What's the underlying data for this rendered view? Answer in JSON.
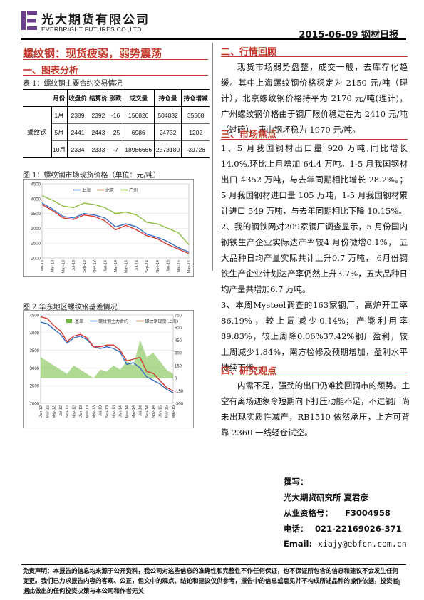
{
  "header": {
    "company_cn": "光大期货有限公司",
    "company_en": "EVERBRIGHT FUTURES CO.,LTD.",
    "date_title": "2015-06-09 钢材日报"
  },
  "main_title": "螺纹钢：现货疲弱，弱势震荡",
  "left": {
    "section1": "一、图表分析",
    "table_caption": "表 1：螺纹钢主要合约交易情况",
    "table": {
      "headers": [
        "月份",
        "收盘价",
        "结算价",
        "涨跌",
        "成交量",
        "持仓量",
        "持仓增减"
      ],
      "product": "螺纹钢",
      "rows": [
        [
          "1月",
          "2389",
          "2392",
          "-16",
          "156826",
          "504832",
          "35568"
        ],
        [
          "5月",
          "2441",
          "2443",
          "-25",
          "6986",
          "24732",
          "1202"
        ],
        [
          "10月",
          "2334",
          "2333",
          "-7",
          "18986666",
          "2373180",
          "-39726"
        ]
      ]
    },
    "fig1_caption": "图 1：螺纹钢市场现货价格（单位：元/吨）",
    "fig2_caption": "图 2  华东地区螺纹钢基差情况"
  },
  "chart_data": [
    {
      "type": "line",
      "title": "",
      "x": [
        "Jan-13",
        "Mar-13",
        "May-13",
        "Jul-13",
        "Sep-13",
        "Nov-13",
        "Jan-14",
        "Mar-14",
        "May-14",
        "Jul-14",
        "Sep-14",
        "Nov-14",
        "Jan-15",
        "Mar-15",
        "May-15"
      ],
      "ylim": [
        2000,
        4500
      ],
      "yticks": [
        2000,
        2500,
        3000,
        3500,
        4000,
        4500
      ],
      "series": [
        {
          "name": "上海",
          "color": "#3b6fc4",
          "values": [
            3850,
            3650,
            3400,
            3350,
            3500,
            3450,
            3350,
            3050,
            3150,
            3050,
            2800,
            2700,
            2550,
            2350,
            2200
          ]
        },
        {
          "name": "北京",
          "color": "#d43a2f",
          "values": [
            3800,
            3600,
            3350,
            3300,
            3450,
            3400,
            3250,
            2950,
            3100,
            2950,
            2750,
            2650,
            2450,
            2300,
            2150
          ]
        },
        {
          "name": "广州",
          "color": "#8cbf3f",
          "values": [
            4100,
            3950,
            3750,
            3700,
            3850,
            3800,
            3700,
            3500,
            3550,
            3450,
            3200,
            3150,
            3000,
            2850,
            2450
          ]
        }
      ]
    },
    {
      "type": "line",
      "title": "",
      "x": [
        "Jan-12",
        "Mar-12",
        "May-12",
        "Jul-12",
        "Sep-12",
        "Nov-12",
        "Jan-13",
        "Mar-13",
        "May-13",
        "Jul-13",
        "Sep-13",
        "Nov-13",
        "Jan-14",
        "Mar-14",
        "May-14",
        "Jul-14",
        "Sep-14",
        "Nov-14",
        "Jan-15",
        "Mar-15",
        "May-15"
      ],
      "ylim": [
        2000,
        4500
      ],
      "yticks": [
        2000,
        2500,
        3000,
        3500,
        4000,
        4500
      ],
      "y2lim": [
        -300,
        750
      ],
      "y2ticks": [
        -300,
        -150,
        0,
        150,
        300,
        450,
        600,
        750
      ],
      "series": [
        {
          "name": "基差",
          "axis": "right",
          "color": "#6fb93a",
          "type": "area",
          "values": [
            250,
            200,
            150,
            100,
            50,
            150,
            100,
            50,
            0,
            100,
            80,
            150,
            100,
            200,
            150,
            450,
            250,
            300,
            200,
            100,
            50
          ]
        },
        {
          "name": "螺纹钢主力合约",
          "axis": "left",
          "color": "#3b6fc4",
          "values": [
            4300,
            4250,
            4100,
            3950,
            3700,
            3850,
            3900,
            3800,
            3600,
            3550,
            3600,
            3550,
            3450,
            3100,
            3150,
            3000,
            2750,
            2650,
            2550,
            2400,
            2300
          ]
        },
        {
          "name": "螺纹钢现货(上海)",
          "axis": "left",
          "color": "#d43a2f",
          "values": [
            4450,
            4400,
            4200,
            4050,
            3750,
            3900,
            3950,
            3850,
            3600,
            3600,
            3650,
            3650,
            3500,
            3200,
            3250,
            3300,
            2900,
            2850,
            2650,
            2450,
            2350
          ]
        }
      ]
    }
  ],
  "right": {
    "section2": "二、行情回顾",
    "review": "现货市场弱势盘整，成交一般，去库存化趋缓。其中上海螺纹钢价格稳定为 2150 元/吨（理计），北京螺纹钢价格持平为 2170 元/吨(理计)，广州螺纹钢价格由于钢厂限价稳定在为 2410 元/吨（过磅），唐山钢坯稳为 1970 元/吨。",
    "section3": "三、市场焦点",
    "focus1": "1、5 月我国钢材出口量 920 万吨,同比增长 14.0%,环比上月增加 64.4 万吨。1-5 月我国钢材出口 4352 万吨，与去年同期相比增长 28.2%。；  5 月我国钢材进口量 105 万吨，1-5 月我国钢材累计进口 549 万吨，与去年同期相比下降 10.15%。",
    "focus2": "2、我的钢铁网对209家钢厂调查显示，5 月份国内钢铁生产企业实际达产率较4 月份微增0.1%，  五大品种日均产量实际共计上升0.7  万吨，  6月份钢铁生产企业计划达产率仍然上升3.7%，五大品种日均产量共增加6.7  万吨。",
    "focus3": "3、本周Mysteel调查的163家钢厂，高炉开工率86.19%，较上周减少0.14%；产能利用率89.83%，较上周降0.06%37.42%钢厂盈利，较上周减少1.84%，南方检修及预期增加，盈利水平持续下滑。",
    "section4": "四、研究观点",
    "view": "内需不足，强劲的出口仍难挽回钢市的颓势。主空有离场迹象令短期向下打压动能不足，不过钢厂尚未出现实质性减产，RB1510 依然承压，上方可背靠 2360 一线轻仓试空。"
  },
  "signature": {
    "label": "撰写：",
    "org": "光大期货研究所  夏君彦",
    "cert_label": "从业资格号：",
    "cert": "F3004958",
    "tel_label": "电话：",
    "tel": "021-22169026-371",
    "email_label": "Email:",
    "email": "xiajy@ebfcn.com.cn"
  },
  "footer": {
    "disclaimer": "免责声明：本报告的信息均来源于公开资料，我公司对这些信息的准确性和完整性不作任何保证，也不保证所包含的信息和建议不会发生任何变更。我们已力求报告内容的客观、公正，但文中的观点、结论和建议仅供参考，报告中的信息或意见并不构成所述品种的操作依据，投资者据此做出的任何投资决策与本公司和作者无关",
    "page": "1"
  }
}
